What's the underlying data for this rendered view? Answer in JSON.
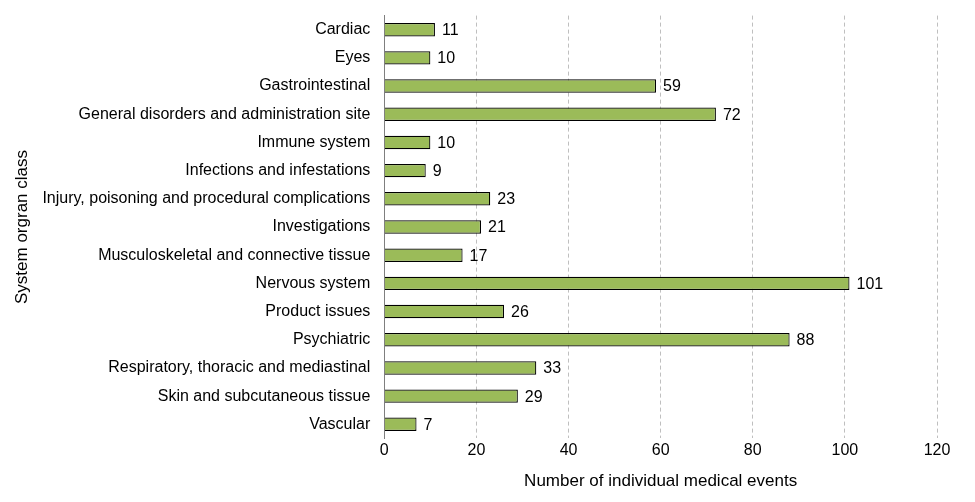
{
  "chart_data": {
    "type": "bar",
    "orientation": "horizontal",
    "x_label": "Number of individual medical events",
    "y_label": "System orgran class",
    "categories": [
      "Cardiac",
      "Eyes",
      "Gastrointestinal",
      "General disorders and administration site",
      "Immune system",
      "Infections and infestations",
      "Injury, poisoning and procedural complications",
      "Investigations",
      "Musculoskeletal and connective tissue",
      "Nervous system",
      "Product issues",
      "Psychiatric",
      "Respiratory, thoracic and mediastinal",
      "Skin and subcutaneous tissue",
      "Vascular"
    ],
    "values": [
      11,
      10,
      59,
      72,
      10,
      9,
      23,
      21,
      17,
      101,
      26,
      88,
      33,
      29,
      7
    ],
    "color": "#9bbb59",
    "xlim": [
      0,
      120
    ],
    "xticks": [
      0,
      20,
      40,
      60,
      80,
      100,
      120
    ],
    "grid": true,
    "data_labels": true
  }
}
